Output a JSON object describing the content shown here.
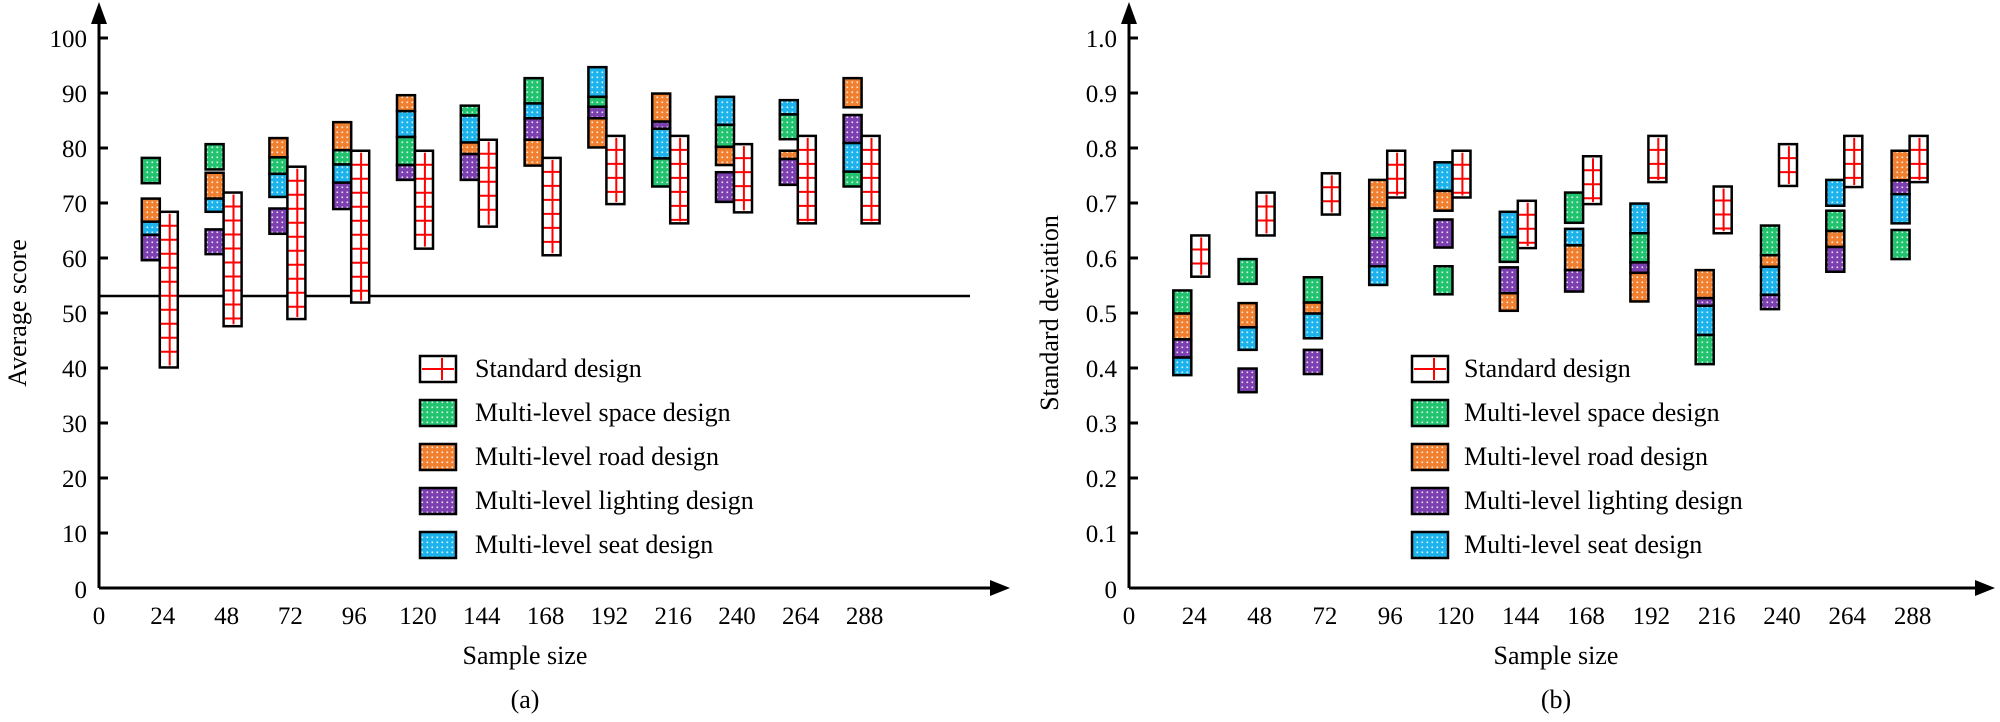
{
  "colors": {
    "standard_fill": "#ffffff",
    "standard_grid": "#ff0000",
    "space": "#22c36f",
    "road": "#f08030",
    "lighting": "#7b3fb0",
    "seat": "#1cb3ec",
    "outline": "#000000"
  },
  "legend": [
    {
      "key": "standard",
      "label": "Standard design"
    },
    {
      "key": "space",
      "label": "Multi-level space design"
    },
    {
      "key": "road",
      "label": "Multi-level road design"
    },
    {
      "key": "lighting",
      "label": "Multi-level lighting design"
    },
    {
      "key": "seat",
      "label": "Multi-level seat design"
    }
  ],
  "chart_data": [
    {
      "id": "a",
      "type": "bar",
      "subtype": "floating-range-bars",
      "caption": "(a)",
      "title": "",
      "xlabel": "Sample size",
      "ylabel": "Average score",
      "categories": [
        "24",
        "48",
        "72",
        "96",
        "120",
        "144",
        "168",
        "192",
        "216",
        "240",
        "264",
        "288"
      ],
      "x_ticks": [
        "0",
        "24",
        "48",
        "72",
        "96",
        "120",
        "144",
        "168",
        "192",
        "216",
        "240",
        "264",
        "288"
      ],
      "y_ticks": [
        "0",
        "10",
        "20",
        "30",
        "40",
        "50",
        "60",
        "70",
        "80",
        "90",
        "100"
      ],
      "ylim": [
        0,
        100
      ],
      "reference_line": 53.1,
      "legend_position": "lower-center",
      "grid": false,
      "standard": [
        [
          40.1,
          68.4
        ],
        [
          47.6,
          71.9
        ],
        [
          48.9,
          76.6
        ],
        [
          51.9,
          79.5
        ],
        [
          61.7,
          79.5
        ],
        [
          65.7,
          81.5
        ],
        [
          60.5,
          78.2
        ],
        [
          69.8,
          82.2
        ],
        [
          66.3,
          82.2
        ],
        [
          68.3,
          80.7
        ],
        [
          66.3,
          82.2
        ],
        [
          66.3,
          82.2
        ]
      ],
      "segments": [
        [
          {
            "key": "space",
            "range": [
              73.6,
              78.2
            ]
          },
          {
            "key": "road",
            "range": [
              66.6,
              70.8
            ]
          },
          {
            "key": "seat",
            "range": [
              64.2,
              66.6
            ]
          },
          {
            "key": "lighting",
            "range": [
              59.6,
              64.2
            ]
          }
        ],
        [
          {
            "key": "space",
            "range": [
              76.1,
              80.7
            ]
          },
          {
            "key": "road",
            "range": [
              70.8,
              75.5
            ]
          },
          {
            "key": "seat",
            "range": [
              68.4,
              70.8
            ]
          },
          {
            "key": "lighting",
            "range": [
              60.7,
              65.2
            ]
          }
        ],
        [
          {
            "key": "road",
            "range": [
              78.3,
              81.8
            ]
          },
          {
            "key": "space",
            "range": [
              75.3,
              78.3
            ]
          },
          {
            "key": "seat",
            "range": [
              71.1,
              75.3
            ]
          },
          {
            "key": "lighting",
            "range": [
              64.4,
              69.0
            ]
          }
        ],
        [
          {
            "key": "road",
            "range": [
              79.6,
              84.7
            ]
          },
          {
            "key": "space",
            "range": [
              77.0,
              79.6
            ]
          },
          {
            "key": "seat",
            "range": [
              73.7,
              77.0
            ]
          },
          {
            "key": "lighting",
            "range": [
              68.9,
              73.7
            ]
          }
        ],
        [
          {
            "key": "road",
            "range": [
              86.7,
              89.6
            ]
          },
          {
            "key": "seat",
            "range": [
              82.0,
              86.7
            ]
          },
          {
            "key": "space",
            "range": [
              76.9,
              82.0
            ]
          },
          {
            "key": "lighting",
            "range": [
              74.2,
              76.9
            ]
          }
        ],
        [
          {
            "key": "space",
            "range": [
              85.9,
              87.7
            ]
          },
          {
            "key": "seat",
            "range": [
              81.0,
              85.9
            ]
          },
          {
            "key": "road",
            "range": [
              78.9,
              81.0
            ]
          },
          {
            "key": "lighting",
            "range": [
              74.2,
              78.9
            ]
          }
        ],
        [
          {
            "key": "space",
            "range": [
              88.1,
              92.7
            ]
          },
          {
            "key": "seat",
            "range": [
              85.4,
              88.1
            ]
          },
          {
            "key": "lighting",
            "range": [
              81.5,
              85.4
            ]
          },
          {
            "key": "road",
            "range": [
              76.8,
              81.5
            ]
          }
        ],
        [
          {
            "key": "seat",
            "range": [
              89.3,
              94.7
            ]
          },
          {
            "key": "space",
            "range": [
              87.5,
              89.3
            ]
          },
          {
            "key": "lighting",
            "range": [
              85.4,
              87.5
            ]
          },
          {
            "key": "road",
            "range": [
              80.1,
              85.4
            ]
          }
        ],
        [
          {
            "key": "road",
            "range": [
              84.8,
              89.9
            ]
          },
          {
            "key": "lighting",
            "range": [
              83.5,
              84.8
            ]
          },
          {
            "key": "seat",
            "range": [
              78.1,
              83.5
            ]
          },
          {
            "key": "space",
            "range": [
              73.0,
              78.1
            ]
          }
        ],
        [
          {
            "key": "seat",
            "range": [
              84.2,
              89.3
            ]
          },
          {
            "key": "space",
            "range": [
              80.2,
              84.2
            ]
          },
          {
            "key": "road",
            "range": [
              76.9,
              80.2
            ]
          },
          {
            "key": "lighting",
            "range": [
              70.2,
              75.6
            ]
          }
        ],
        [
          {
            "key": "seat",
            "range": [
              86.1,
              88.7
            ]
          },
          {
            "key": "space",
            "range": [
              81.6,
              86.1
            ]
          },
          {
            "key": "road",
            "range": [
              78.0,
              79.5
            ]
          },
          {
            "key": "lighting",
            "range": [
              73.3,
              78.0
            ]
          }
        ],
        [
          {
            "key": "road",
            "range": [
              87.4,
              92.7
            ]
          },
          {
            "key": "lighting",
            "range": [
              80.9,
              86.0
            ]
          },
          {
            "key": "seat",
            "range": [
              75.7,
              80.9
            ]
          },
          {
            "key": "space",
            "range": [
              73.0,
              75.7
            ]
          }
        ]
      ]
    },
    {
      "id": "b",
      "type": "bar",
      "subtype": "floating-range-bars",
      "caption": "(b)",
      "title": "",
      "xlabel": "Sample size",
      "ylabel": "Standard deviation",
      "categories": [
        "24",
        "48",
        "72",
        "96",
        "120",
        "144",
        "168",
        "192",
        "216",
        "240",
        "264",
        "288"
      ],
      "x_ticks": [
        "0",
        "24",
        "48",
        "72",
        "96",
        "120",
        "144",
        "168",
        "192",
        "216",
        "240",
        "264",
        "288"
      ],
      "y_ticks": [
        "0",
        "0.1",
        "0.2",
        "0.3",
        "0.4",
        "0.5",
        "0.6",
        "0.7",
        "0.8",
        "0.9",
        "1.0"
      ],
      "ylim": [
        0,
        1.0
      ],
      "legend_position": "lower-center",
      "grid": false,
      "standard": [
        [
          0.566,
          0.641
        ],
        [
          0.641,
          0.719
        ],
        [
          0.679,
          0.754
        ],
        [
          0.71,
          0.795
        ],
        [
          0.71,
          0.795
        ],
        [
          0.618,
          0.704
        ],
        [
          0.698,
          0.785
        ],
        [
          0.738,
          0.822
        ],
        [
          0.645,
          0.73
        ],
        [
          0.731,
          0.807
        ],
        [
          0.729,
          0.822
        ],
        [
          0.738,
          0.822
        ]
      ],
      "segments": [
        [
          {
            "key": "space",
            "range": [
              0.499,
              0.541
            ]
          },
          {
            "key": "road",
            "range": [
              0.452,
              0.499
            ]
          },
          {
            "key": "lighting",
            "range": [
              0.419,
              0.452
            ]
          },
          {
            "key": "seat",
            "range": [
              0.387,
              0.419
            ]
          }
        ],
        [
          {
            "key": "space",
            "range": [
              0.553,
              0.598
            ]
          },
          {
            "key": "road",
            "range": [
              0.474,
              0.518
            ]
          },
          {
            "key": "seat",
            "range": [
              0.433,
              0.474
            ]
          },
          {
            "key": "lighting",
            "range": [
              0.356,
              0.399
            ]
          }
        ],
        [
          {
            "key": "space",
            "range": [
              0.519,
              0.565
            ]
          },
          {
            "key": "road",
            "range": [
              0.499,
              0.519
            ]
          },
          {
            "key": "seat",
            "range": [
              0.454,
              0.499
            ]
          },
          {
            "key": "lighting",
            "range": [
              0.389,
              0.433
            ]
          }
        ],
        [
          {
            "key": "road",
            "range": [
              0.69,
              0.742
            ]
          },
          {
            "key": "space",
            "range": [
              0.636,
              0.69
            ]
          },
          {
            "key": "lighting",
            "range": [
              0.585,
              0.636
            ]
          },
          {
            "key": "seat",
            "range": [
              0.551,
              0.585
            ]
          }
        ],
        [
          {
            "key": "seat",
            "range": [
              0.722,
              0.774
            ]
          },
          {
            "key": "road",
            "range": [
              0.686,
              0.722
            ]
          },
          {
            "key": "lighting",
            "range": [
              0.619,
              0.67
            ]
          },
          {
            "key": "space",
            "range": [
              0.534,
              0.585
            ]
          }
        ],
        [
          {
            "key": "seat",
            "range": [
              0.638,
              0.684
            ]
          },
          {
            "key": "space",
            "range": [
              0.593,
              0.638
            ]
          },
          {
            "key": "lighting",
            "range": [
              0.536,
              0.583
            ]
          },
          {
            "key": "road",
            "range": [
              0.504,
              0.536
            ]
          }
        ],
        [
          {
            "key": "space",
            "range": [
              0.664,
              0.719
            ]
          },
          {
            "key": "seat",
            "range": [
              0.623,
              0.653
            ]
          },
          {
            "key": "road",
            "range": [
              0.578,
              0.623
            ]
          },
          {
            "key": "lighting",
            "range": [
              0.539,
              0.578
            ]
          }
        ],
        [
          {
            "key": "seat",
            "range": [
              0.645,
              0.699
            ]
          },
          {
            "key": "space",
            "range": [
              0.592,
              0.645
            ]
          },
          {
            "key": "lighting",
            "range": [
              0.573,
              0.592
            ]
          },
          {
            "key": "road",
            "range": [
              0.521,
              0.573
            ]
          }
        ],
        [
          {
            "key": "road",
            "range": [
              0.527,
              0.578
            ]
          },
          {
            "key": "lighting",
            "range": [
              0.513,
              0.527
            ]
          },
          {
            "key": "seat",
            "range": [
              0.46,
              0.513
            ]
          },
          {
            "key": "space",
            "range": [
              0.407,
              0.46
            ]
          }
        ],
        [
          {
            "key": "space",
            "range": [
              0.605,
              0.659
            ]
          },
          {
            "key": "road",
            "range": [
              0.584,
              0.605
            ]
          },
          {
            "key": "seat",
            "range": [
              0.533,
              0.584
            ]
          },
          {
            "key": "lighting",
            "range": [
              0.507,
              0.533
            ]
          }
        ],
        [
          {
            "key": "seat",
            "range": [
              0.695,
              0.742
            ]
          },
          {
            "key": "space",
            "range": [
              0.649,
              0.686
            ]
          },
          {
            "key": "road",
            "range": [
              0.62,
              0.649
            ]
          },
          {
            "key": "lighting",
            "range": [
              0.575,
              0.62
            ]
          }
        ],
        [
          {
            "key": "road",
            "range": [
              0.741,
              0.795
            ]
          },
          {
            "key": "lighting",
            "range": [
              0.716,
              0.741
            ]
          },
          {
            "key": "seat",
            "range": [
              0.663,
              0.716
            ]
          },
          {
            "key": "space",
            "range": [
              0.598,
              0.651
            ]
          }
        ]
      ]
    }
  ]
}
